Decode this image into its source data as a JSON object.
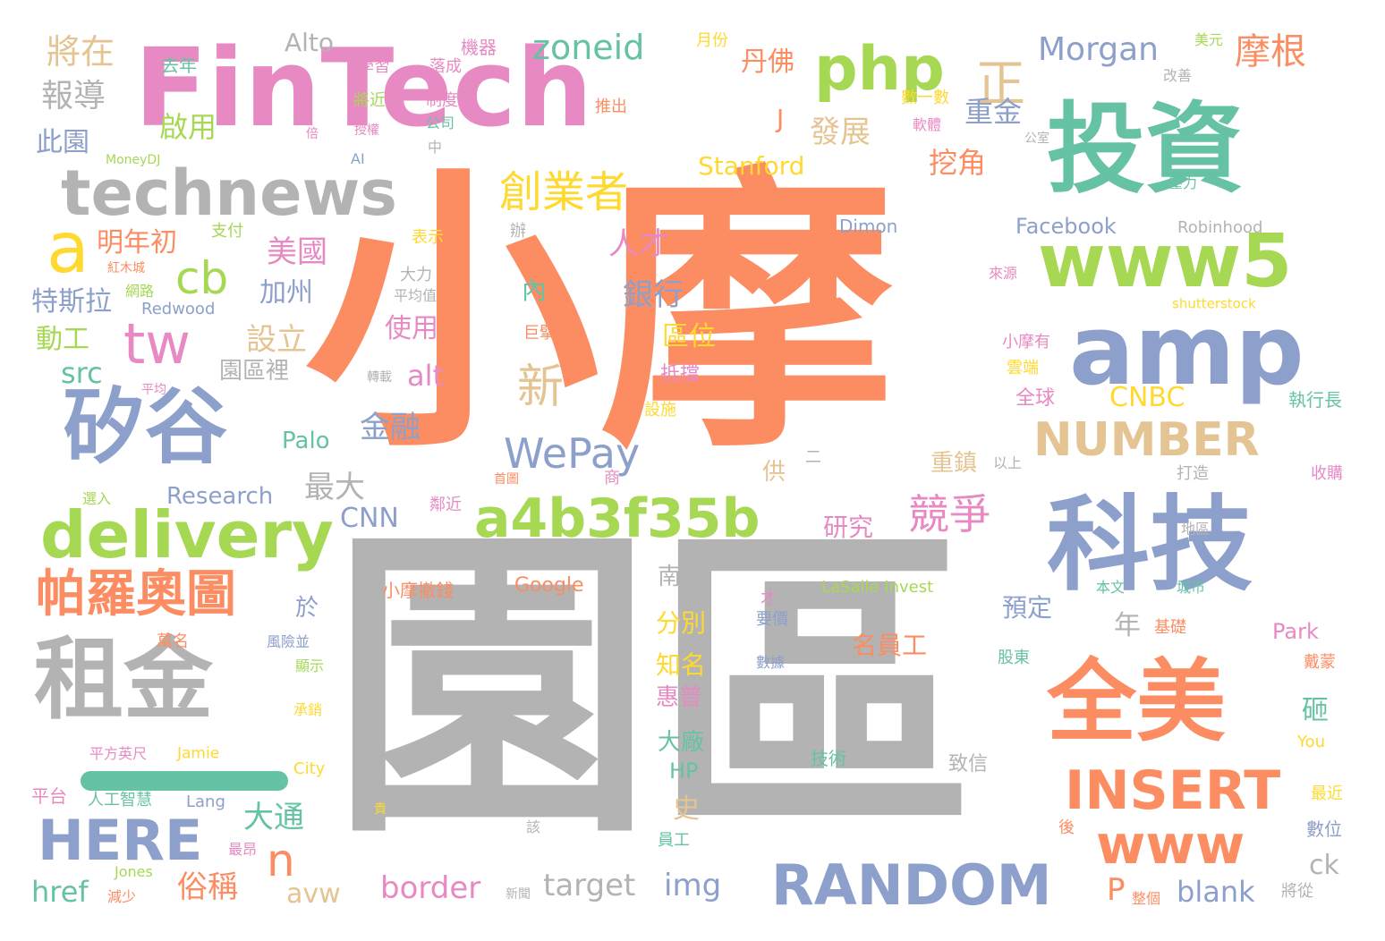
{
  "palette": {
    "teal": "#66c2a5",
    "orange": "#fc8d62",
    "blue": "#8da0cb",
    "pink": "#e78ac3",
    "green": "#a6d854",
    "yellow": "#ffd92f",
    "tan": "#e5c494",
    "gray": "#b3b3b3"
  },
  "words": [
    {
      "text": "小摩",
      "color": "orange"
    },
    {
      "text": "園區",
      "color": "gray"
    },
    {
      "text": "FinTech",
      "color": "pink"
    },
    {
      "text": "投資",
      "color": "teal"
    },
    {
      "text": "科技",
      "color": "blue"
    },
    {
      "text": "amp",
      "color": "blue"
    },
    {
      "text": "www5",
      "color": "green"
    },
    {
      "text": "全美",
      "color": "orange"
    },
    {
      "text": "technews",
      "color": "gray"
    },
    {
      "text": "矽谷",
      "color": "blue"
    },
    {
      "text": "租金",
      "color": "gray"
    },
    {
      "text": "php",
      "color": "green"
    },
    {
      "text": "delivery",
      "color": "green"
    },
    {
      "text": "a4b3f35b",
      "color": "green"
    },
    {
      "text": "INSERT",
      "color": "orange"
    },
    {
      "text": "www",
      "color": "orange"
    },
    {
      "text": "RANDOM",
      "color": "blue"
    },
    {
      "text": "HERE",
      "color": "blue"
    },
    {
      "text": "NUMBER",
      "color": "tan"
    },
    {
      "text": "帕羅奧圖",
      "color": "orange"
    },
    {
      "text": "zoneid",
      "color": "teal"
    },
    {
      "text": "創業者",
      "color": "yellow"
    },
    {
      "text": "WePay",
      "color": "blue"
    },
    {
      "text": "競爭",
      "color": "pink"
    },
    {
      "text": "tw",
      "color": "pink"
    },
    {
      "text": "a",
      "color": "yellow"
    },
    {
      "text": "cb",
      "color": "green"
    },
    {
      "text": "n",
      "color": "orange"
    },
    {
      "text": "新",
      "color": "tan"
    },
    {
      "text": "正",
      "color": "tan"
    },
    {
      "text": "Morgan",
      "color": "blue"
    },
    {
      "text": "摩根",
      "color": "orange"
    },
    {
      "text": "將在",
      "color": "tan"
    },
    {
      "text": "報導",
      "color": "gray"
    },
    {
      "text": "去年",
      "color": "teal"
    },
    {
      "text": "Alto",
      "color": "gray"
    },
    {
      "text": "機器",
      "color": "pink"
    },
    {
      "text": "月份",
      "color": "yellow"
    },
    {
      "text": "美元",
      "color": "green"
    },
    {
      "text": "學習",
      "color": "pink"
    },
    {
      "text": "落成",
      "color": "pink"
    },
    {
      "text": "改善",
      "color": "gray"
    },
    {
      "text": "丹佛",
      "color": "orange"
    },
    {
      "text": "重金",
      "color": "blue"
    },
    {
      "text": "發展",
      "color": "tan"
    },
    {
      "text": "挖角",
      "color": "orange"
    },
    {
      "text": "啟用",
      "color": "green"
    },
    {
      "text": "將近",
      "color": "green"
    },
    {
      "text": "制度",
      "color": "pink"
    },
    {
      "text": "公司",
      "color": "teal"
    },
    {
      "text": "推出",
      "color": "orange"
    },
    {
      "text": "數一數",
      "color": "yellow"
    },
    {
      "text": "軟體",
      "color": "pink"
    },
    {
      "text": "此園",
      "color": "blue"
    },
    {
      "text": "J",
      "color": "orange"
    },
    {
      "text": "Stanford",
      "color": "yellow"
    },
    {
      "text": "MoneyDJ",
      "color": "green"
    },
    {
      "text": "AI",
      "color": "blue"
    },
    {
      "text": "授權",
      "color": "pink"
    },
    {
      "text": "倍",
      "color": "pink"
    },
    {
      "text": "中",
      "color": "gray"
    },
    {
      "text": "公室",
      "color": "gray"
    },
    {
      "text": "壓力",
      "color": "teal"
    },
    {
      "text": "明年初",
      "color": "orange"
    },
    {
      "text": "支付",
      "color": "green"
    },
    {
      "text": "紅木城",
      "color": "orange"
    },
    {
      "text": "網路",
      "color": "green"
    },
    {
      "text": "美國",
      "color": "pink"
    },
    {
      "text": "人才",
      "color": "pink"
    },
    {
      "text": "加州",
      "color": "blue"
    },
    {
      "text": "銀行",
      "color": "blue"
    },
    {
      "text": "Facebook",
      "color": "blue"
    },
    {
      "text": "Dimon",
      "color": "blue"
    },
    {
      "text": "Robinhood",
      "color": "gray"
    },
    {
      "text": "表示",
      "color": "yellow"
    },
    {
      "text": "辦",
      "color": "gray"
    },
    {
      "text": "大力",
      "color": "gray"
    },
    {
      "text": "平均值",
      "color": "gray"
    },
    {
      "text": "來源",
      "color": "pink"
    },
    {
      "text": "特斯拉",
      "color": "blue"
    },
    {
      "text": "Redwood",
      "color": "blue"
    },
    {
      "text": "shutterstock",
      "color": "yellow"
    },
    {
      "text": "動工",
      "color": "green"
    },
    {
      "text": "設立",
      "color": "tan"
    },
    {
      "text": "使用",
      "color": "pink"
    },
    {
      "text": "內",
      "color": "teal"
    },
    {
      "text": "區位",
      "color": "yellow"
    },
    {
      "text": "巨擘",
      "color": "orange"
    },
    {
      "text": "小摩有",
      "color": "pink"
    },
    {
      "text": "src",
      "color": "teal"
    },
    {
      "text": "園區裡",
      "color": "gray"
    },
    {
      "text": "alt",
      "color": "pink"
    },
    {
      "text": "抵擋",
      "color": "pink"
    },
    {
      "text": "雲端",
      "color": "yellow"
    },
    {
      "text": "平均",
      "color": "pink"
    },
    {
      "text": "轉載",
      "color": "gray"
    },
    {
      "text": "全球",
      "color": "pink"
    },
    {
      "text": "CNBC",
      "color": "yellow"
    },
    {
      "text": "執行長",
      "color": "teal"
    },
    {
      "text": "設施",
      "color": "yellow"
    },
    {
      "text": "金融",
      "color": "blue"
    },
    {
      "text": "Palo",
      "color": "teal"
    },
    {
      "text": "二",
      "color": "gray"
    },
    {
      "text": "重鎮",
      "color": "tan"
    },
    {
      "text": "以上",
      "color": "gray"
    },
    {
      "text": "打造",
      "color": "gray"
    },
    {
      "text": "收購",
      "color": "pink"
    },
    {
      "text": "最大",
      "color": "gray"
    },
    {
      "text": "供",
      "color": "tan"
    },
    {
      "text": "研究",
      "color": "pink"
    },
    {
      "text": "首圖",
      "color": "orange"
    },
    {
      "text": "商",
      "color": "pink"
    },
    {
      "text": "Research",
      "color": "blue"
    },
    {
      "text": "選入",
      "color": "green"
    },
    {
      "text": "CNN",
      "color": "blue"
    },
    {
      "text": "鄰近",
      "color": "pink"
    },
    {
      "text": "地區",
      "color": "gray"
    },
    {
      "text": "南北",
      "color": "gray"
    },
    {
      "text": "城市",
      "color": "teal"
    },
    {
      "text": "本文",
      "color": "teal"
    },
    {
      "text": "小摩撤錢",
      "color": "orange"
    },
    {
      "text": "Google",
      "color": "orange"
    },
    {
      "text": "LaSalle Invest",
      "color": "green"
    },
    {
      "text": "於",
      "color": "blue"
    },
    {
      "text": "分別",
      "color": "yellow"
    },
    {
      "text": "預定",
      "color": "blue"
    },
    {
      "text": "才",
      "color": "pink"
    },
    {
      "text": "要價",
      "color": "blue"
    },
    {
      "text": "年",
      "color": "gray"
    },
    {
      "text": "基礎",
      "color": "orange"
    },
    {
      "text": "Park",
      "color": "pink"
    },
    {
      "text": "名員工",
      "color": "orange"
    },
    {
      "text": "萬名",
      "color": "orange"
    },
    {
      "text": "風險並",
      "color": "blue"
    },
    {
      "text": "顯示",
      "color": "green"
    },
    {
      "text": "知名",
      "color": "yellow"
    },
    {
      "text": "數據",
      "color": "blue"
    },
    {
      "text": "股東",
      "color": "teal"
    },
    {
      "text": "戴蒙",
      "color": "orange"
    },
    {
      "text": "惠普",
      "color": "pink"
    },
    {
      "text": "砸",
      "color": "teal"
    },
    {
      "text": "承銷",
      "color": "yellow"
    },
    {
      "text": "大廠",
      "color": "teal"
    },
    {
      "text": "You",
      "color": "yellow"
    },
    {
      "text": "平方英尺",
      "color": "pink"
    },
    {
      "text": "Jamie",
      "color": "yellow"
    },
    {
      "text": "City",
      "color": "yellow"
    },
    {
      "text": "技術",
      "color": "teal"
    },
    {
      "text": "致信",
      "color": "gray"
    },
    {
      "text": "HP",
      "color": "teal"
    },
    {
      "text": "大通",
      "color": "teal"
    },
    {
      "text": "史",
      "color": "tan"
    },
    {
      "text": "平台",
      "color": "pink"
    },
    {
      "text": "人工智慧",
      "color": "teal"
    },
    {
      "text": "Lang",
      "color": "blue"
    },
    {
      "text": "貴",
      "color": "yellow"
    },
    {
      "text": "該",
      "color": "gray"
    },
    {
      "text": "最近",
      "color": "yellow"
    },
    {
      "text": "員工",
      "color": "teal"
    },
    {
      "text": "數位",
      "color": "blue"
    },
    {
      "text": "後",
      "color": "orange"
    },
    {
      "text": "最昂",
      "color": "pink"
    },
    {
      "text": "俗稱",
      "color": "orange"
    },
    {
      "text": "Jones",
      "color": "green"
    },
    {
      "text": "ck",
      "color": "gray"
    },
    {
      "text": "target",
      "color": "gray"
    },
    {
      "text": "img",
      "color": "blue"
    },
    {
      "text": "border",
      "color": "pink"
    },
    {
      "text": "avw",
      "color": "tan"
    },
    {
      "text": "P",
      "color": "orange"
    },
    {
      "text": "blank",
      "color": "blue"
    },
    {
      "text": "href",
      "color": "teal"
    },
    {
      "text": "減少",
      "color": "orange"
    },
    {
      "text": "新聞",
      "color": "gray"
    },
    {
      "text": "整個",
      "color": "orange"
    },
    {
      "text": "將從",
      "color": "gray"
    }
  ]
}
